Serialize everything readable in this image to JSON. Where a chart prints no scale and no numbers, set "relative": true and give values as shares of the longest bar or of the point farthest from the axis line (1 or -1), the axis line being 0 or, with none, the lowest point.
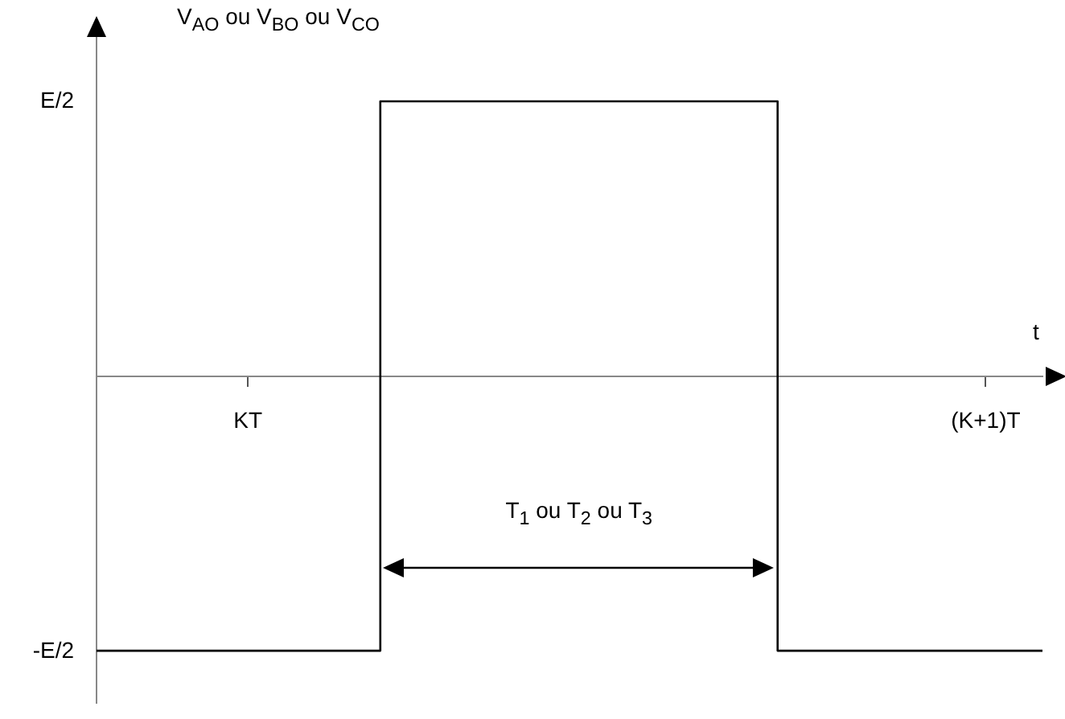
{
  "chart_data": {
    "type": "step",
    "relative": true,
    "xlabel": "t",
    "ylabel": "V$_{AO}$ ou V$_{BO}$ ou V$_{CO}$",
    "categories": [
      null,
      null,
      null,
      null,
      null,
      null,
      null,
      null,
      "KT",
      null,
      null,
      null,
      null,
      null,
      null,
      null,
      null,
      null,
      null,
      null,
      null,
      null,
      null,
      null,
      null,
      null,
      null,
      null,
      null,
      null,
      null,
      null,
      null,
      null,
      null,
      null,
      null,
      null,
      null,
      null,
      null,
      null,
      null,
      null,
      null,
      null,
      null,
      "(K+1)T",
      null,
      null,
      null
    ],
    "values": [
      -1,
      -1,
      -1,
      -1,
      -1,
      -1,
      -1,
      -1,
      -1,
      -1,
      -1,
      -1,
      -1,
      -1,
      -1,
      1,
      1,
      1,
      1,
      1,
      1,
      1,
      1,
      1,
      1,
      1,
      1,
      1,
      1,
      1,
      1,
      1,
      1,
      1,
      1,
      1,
      -1,
      -1,
      -1,
      -1,
      -1,
      -1,
      -1,
      -1,
      -1,
      -1,
      -1,
      -1,
      -1,
      -1,
      -1
    ],
    "color": "#000000",
    "annotations": [
      "E/2",
      "-E/2",
      "T$_{1}$ ou T$_{2}$ ou T$_{3}$"
    ],
    "grid": false,
    "legend": false,
    "marker": "none",
    "line_style": "solid"
  }
}
